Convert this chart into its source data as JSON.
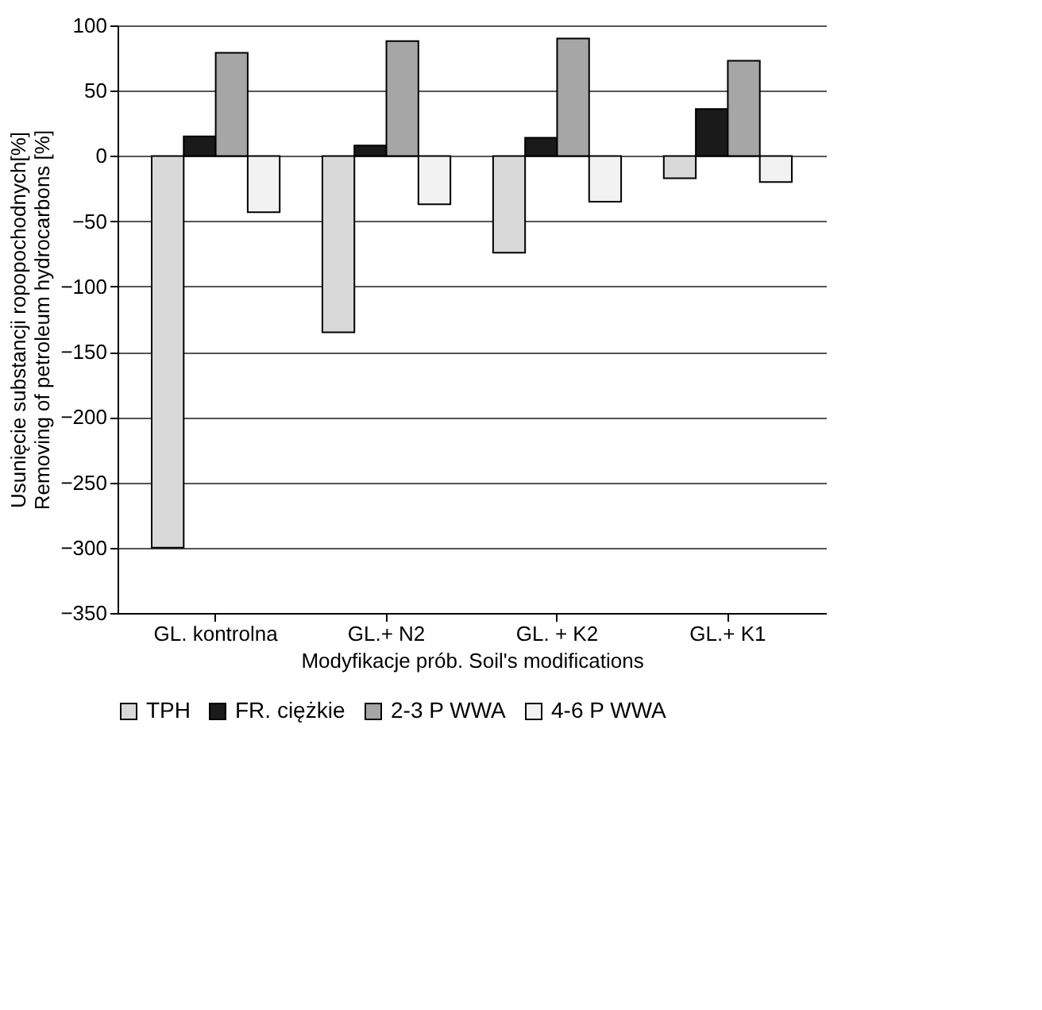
{
  "chart_data": {
    "type": "bar",
    "xlabel": "Modyfikacje prób. Soil's modifications",
    "ylabel": "Usunięcie substancji ropopochodnych[%] Removing of petroleum hydrocarbons [%]",
    "categories": [
      "GL. kontrolna",
      "GL.+ N2",
      "GL. + K2",
      "GL.+ K1"
    ],
    "series": [
      {
        "name": "TPH",
        "color": "#d9d9d9",
        "values": [
          -300,
          -135,
          -74,
          -17
        ]
      },
      {
        "name": "FR. ciężkie",
        "color": "#1a1a1a",
        "values": [
          15,
          8,
          14,
          36
        ]
      },
      {
        "name": "2-3 P WWA",
        "color": "#a6a6a6",
        "values": [
          79,
          88,
          90,
          73
        ]
      },
      {
        "name": "4-6 P WWA",
        "color": "#f2f2f2",
        "values": [
          -43,
          -37,
          -35,
          -20
        ]
      }
    ],
    "ylim": [
      -350,
      100
    ],
    "yticks": [
      -350,
      -300,
      -250,
      -200,
      -150,
      -100,
      -50,
      0,
      50,
      100
    ],
    "grid": "y",
    "legend": "bottom"
  }
}
